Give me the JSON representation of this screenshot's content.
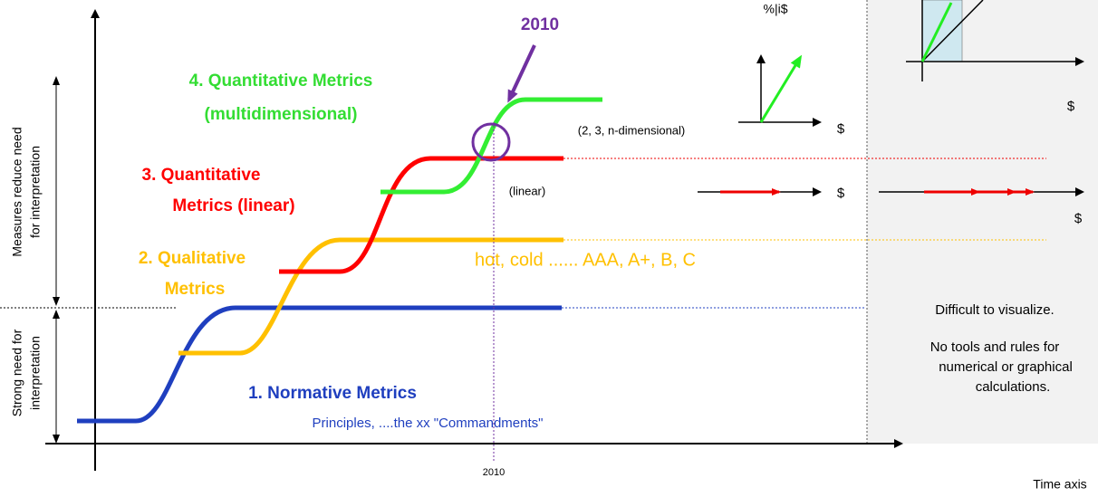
{
  "labels": {
    "year_top": "2010",
    "axis_pct": "%|i$",
    "dollar_topright": "$",
    "quant_multi_1": "4. Quantitative Metrics",
    "quant_multi_2": "(multidimensional)",
    "ndim": "(2, 3, n-dimensional)",
    "dollar_ndim": "$",
    "quant_lin_1": "3. Quantitative",
    "quant_lin_2": "Metrics (linear)",
    "linear": "(linear)",
    "dollar_linear": "$",
    "dollar_right": "$",
    "qual_1": "2. Qualitative",
    "qual_2": "Metrics",
    "qual_examples": "hot, cold ...... AAA, A+, B, C",
    "reduce_1": "Measures reduce need",
    "reduce_2": "for interpretation",
    "strong_1": "Strong need for",
    "strong_2": "interpretation",
    "difficult": "Difficult to visualize.",
    "notools_1": "No tools and rules for",
    "notools_2": "numerical or graphical",
    "notools_3": "calculations.",
    "norm": "1. Normative Metrics",
    "principles": "Principles, ....the xx \"Commandments\"",
    "year_axis": "2010",
    "time_axis": "Time axis"
  }
}
